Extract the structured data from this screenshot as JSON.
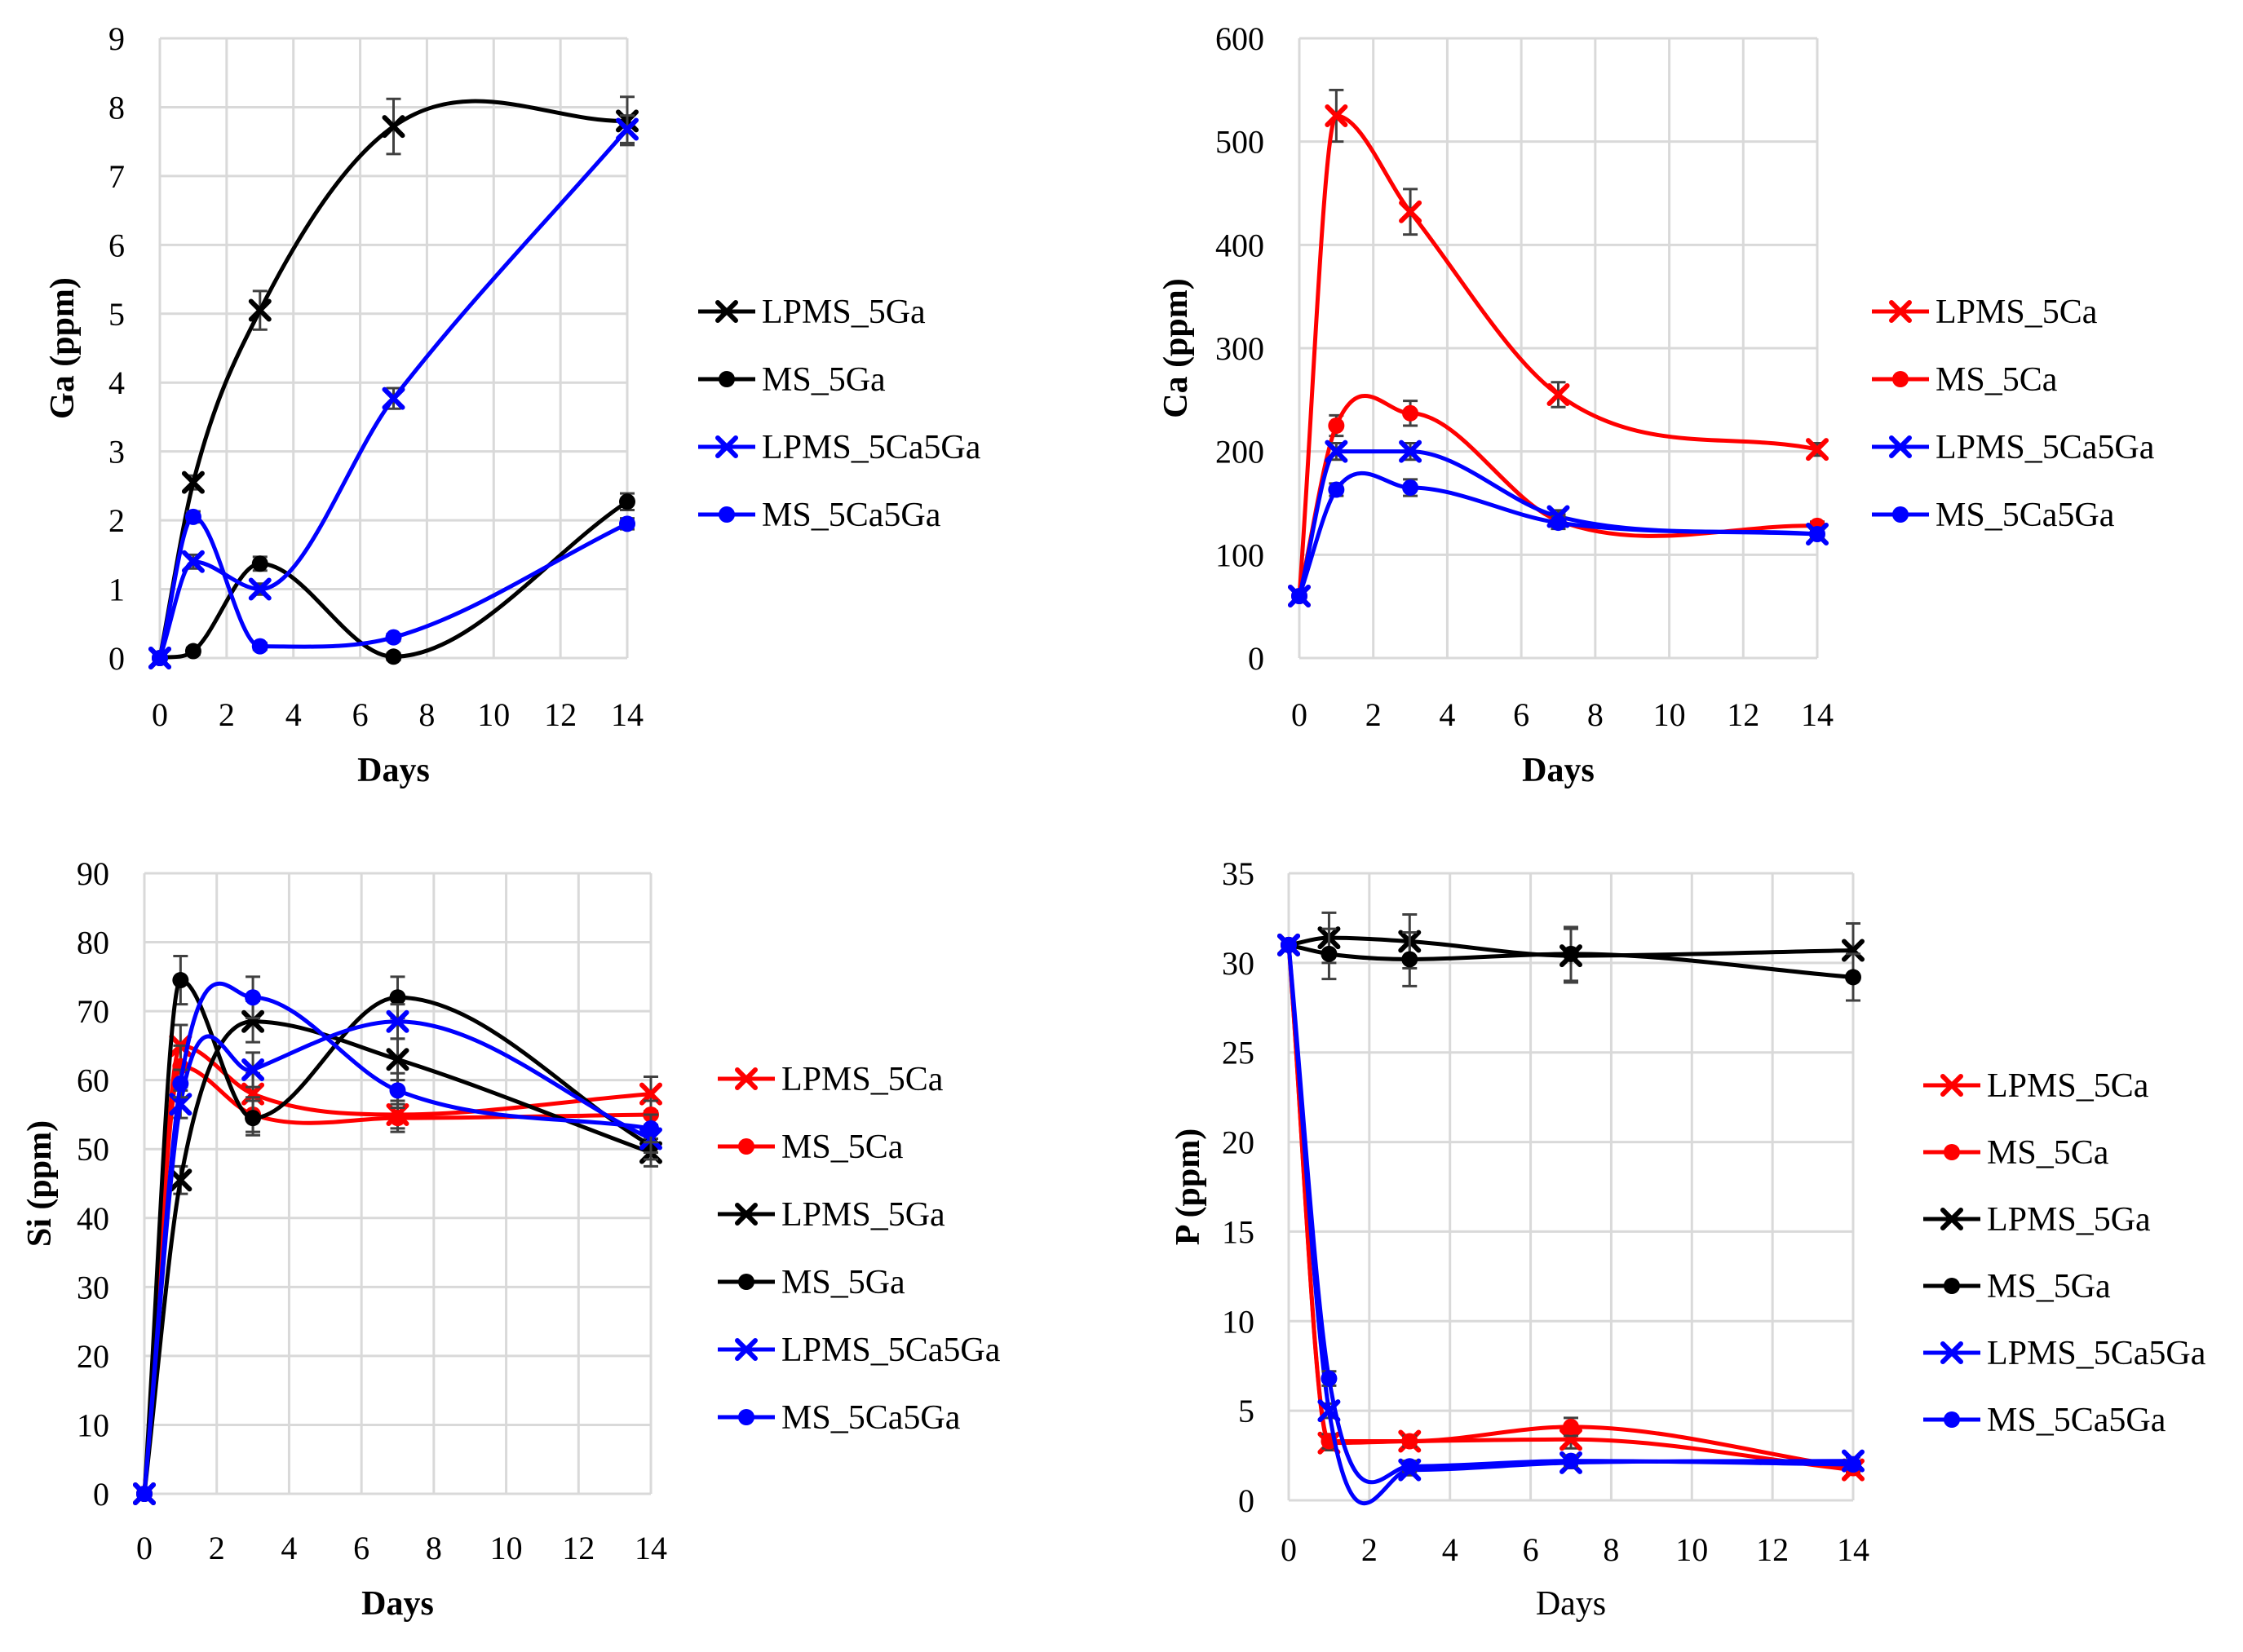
{
  "chart_data": [
    {
      "type": "line",
      "id": "ga",
      "xlabel": "Days",
      "ylabel": "Ga (ppm)",
      "xlim": [
        0,
        14
      ],
      "ylim": [
        0,
        9
      ],
      "xticks": [
        0,
        2,
        4,
        6,
        8,
        10,
        12,
        14
      ],
      "yticks": [
        0,
        1,
        2,
        3,
        4,
        5,
        6,
        7,
        8,
        9
      ],
      "xtick_labels": [
        "0",
        "2",
        "4",
        "6",
        "8",
        "10",
        "12",
        "14"
      ],
      "ytick_labels": [
        "0",
        "1",
        "2",
        "3",
        "4",
        "5",
        "6",
        "7",
        "8",
        "9"
      ],
      "x": [
        0,
        1,
        3,
        7,
        14
      ],
      "series": [
        {
          "name": "LPMS_5Ga",
          "marker": "x",
          "color": "#000000",
          "values": [
            0,
            2.55,
            5.05,
            7.72,
            7.8
          ],
          "errors": [
            0,
            0.1,
            0.28,
            0.4,
            0.35
          ]
        },
        {
          "name": "MS_5Ga",
          "marker": "o",
          "color": "#000000",
          "values": [
            0,
            0.1,
            1.37,
            0.02,
            2.27
          ],
          "errors": [
            0,
            0.05,
            0.1,
            0.05,
            0.12
          ]
        },
        {
          "name": "LPMS_5Ca5Ga",
          "marker": "x",
          "color": "#0000ff",
          "values": [
            0,
            1.4,
            1.0,
            3.77,
            7.68
          ],
          "errors": [
            0,
            0.1,
            0.08,
            0.15,
            0.2
          ]
        },
        {
          "name": "MS_5Ca5Ga",
          "marker": "o",
          "color": "#0000ff",
          "values": [
            0,
            2.05,
            0.17,
            0.3,
            1.95
          ],
          "errors": [
            0,
            0.08,
            0.05,
            0.05,
            0.08
          ]
        }
      ]
    },
    {
      "type": "line",
      "id": "ca",
      "xlabel": "Days",
      "ylabel": "Ca (ppm)",
      "xlim": [
        0,
        14
      ],
      "ylim": [
        0,
        600
      ],
      "xticks": [
        0,
        2,
        4,
        6,
        8,
        10,
        12,
        14
      ],
      "yticks": [
        0,
        100,
        200,
        300,
        400,
        500,
        600
      ],
      "xtick_labels": [
        "0",
        "2",
        "4",
        "6",
        "8",
        "10",
        "12",
        "14"
      ],
      "ytick_labels": [
        "0",
        "100",
        "200",
        "300",
        "400",
        "500",
        "600"
      ],
      "x": [
        0,
        1,
        3,
        7,
        14
      ],
      "series": [
        {
          "name": "LPMS_5Ca",
          "marker": "x",
          "color": "#ff0000",
          "values": [
            60,
            525,
            432,
            255,
            202
          ],
          "errors": [
            0,
            25,
            22,
            12,
            6
          ]
        },
        {
          "name": "MS_5Ca",
          "marker": "o",
          "color": "#ff0000",
          "values": [
            60,
            225,
            237,
            133,
            128
          ],
          "errors": [
            0,
            10,
            12,
            6,
            4
          ]
        },
        {
          "name": "LPMS_5Ca5Ga",
          "marker": "x",
          "color": "#0000ff",
          "values": [
            60,
            200,
            200,
            137,
            120
          ],
          "errors": [
            0,
            8,
            8,
            6,
            4
          ]
        },
        {
          "name": "MS_5Ca5Ga",
          "marker": "o",
          "color": "#0000ff",
          "values": [
            60,
            163,
            165,
            131,
            120
          ],
          "errors": [
            0,
            6,
            8,
            6,
            4
          ]
        }
      ]
    },
    {
      "type": "line",
      "id": "si",
      "xlabel": "Days",
      "ylabel": "Si (ppm)",
      "xlim": [
        0,
        14
      ],
      "ylim": [
        0,
        90
      ],
      "xticks": [
        0,
        2,
        4,
        6,
        8,
        10,
        12,
        14
      ],
      "yticks": [
        0,
        10,
        20,
        30,
        40,
        50,
        60,
        70,
        80,
        90
      ],
      "xtick_labels": [
        "0",
        "2",
        "4",
        "6",
        "8",
        "10",
        "12",
        "14"
      ],
      "ytick_labels": [
        "0",
        "10",
        "20",
        "30",
        "40",
        "50",
        "60",
        "70",
        "80",
        "90"
      ],
      "x": [
        0,
        1,
        3,
        7,
        14
      ],
      "series": [
        {
          "name": "LPMS_5Ca",
          "marker": "x",
          "color": "#ff0000",
          "values": [
            0,
            65,
            58,
            55,
            58
          ],
          "errors": [
            0,
            3,
            3,
            2,
            2.5
          ]
        },
        {
          "name": "MS_5Ca",
          "marker": "o",
          "color": "#ff0000",
          "values": [
            0,
            62,
            55,
            54.5,
            55
          ],
          "errors": [
            0,
            3,
            2.5,
            2,
            2
          ]
        },
        {
          "name": "LPMS_5Ga",
          "marker": "x",
          "color": "#000000",
          "values": [
            0,
            45.5,
            68.5,
            63,
            49.5
          ],
          "errors": [
            0,
            2,
            3,
            3,
            2
          ]
        },
        {
          "name": "MS_5Ga",
          "marker": "o",
          "color": "#000000",
          "values": [
            0,
            74.5,
            54.5,
            72,
            50.5
          ],
          "errors": [
            0,
            3.5,
            2.5,
            3,
            2
          ]
        },
        {
          "name": "LPMS_5Ca5Ga",
          "marker": "x",
          "color": "#0000ff",
          "values": [
            0,
            56.5,
            61.5,
            68.5,
            51.5
          ],
          "errors": [
            0,
            2,
            2.5,
            2.5,
            2
          ]
        },
        {
          "name": "MS_5Ca5Ga",
          "marker": "o",
          "color": "#0000ff",
          "values": [
            0,
            59.5,
            72,
            58.5,
            53
          ],
          "errors": [
            0,
            2,
            3,
            2.5,
            2
          ]
        }
      ]
    },
    {
      "type": "line",
      "id": "p",
      "xlabel": "Days",
      "ylabel": "P (ppm)",
      "xlim": [
        0,
        14
      ],
      "ylim": [
        0,
        35
      ],
      "xticks": [
        0,
        2,
        4,
        6,
        8,
        10,
        12,
        14
      ],
      "yticks": [
        0,
        5,
        10,
        15,
        20,
        25,
        30,
        35
      ],
      "xtick_labels": [
        "0",
        "2",
        "4",
        "6",
        "8",
        "10",
        "12",
        "14"
      ],
      "ytick_labels": [
        "0",
        "5",
        "10",
        "15",
        "20",
        "25",
        "30",
        "35"
      ],
      "x": [
        0,
        1,
        3,
        7,
        14
      ],
      "series": [
        {
          "name": "LPMS_5Ca",
          "marker": "x",
          "color": "#ff0000",
          "values": [
            31,
            3.2,
            3.3,
            3.4,
            1.7
          ],
          "errors": [
            0,
            0.4,
            0.3,
            0.5,
            0.2
          ]
        },
        {
          "name": "MS_5Ca",
          "marker": "o",
          "color": "#ff0000",
          "values": [
            31,
            3.3,
            3.3,
            4.1,
            1.8
          ],
          "errors": [
            0,
            0.4,
            0.3,
            0.5,
            0.2
          ]
        },
        {
          "name": "LPMS_5Ga",
          "marker": "x",
          "color": "#000000",
          "values": [
            31,
            31.4,
            31.2,
            30.4,
            30.7
          ],
          "errors": [
            0,
            1.4,
            1.5,
            1.5,
            1.5
          ]
        },
        {
          "name": "MS_5Ga",
          "marker": "o",
          "color": "#000000",
          "values": [
            31,
            30.5,
            30.2,
            30.5,
            29.2
          ],
          "errors": [
            0,
            1.4,
            1.5,
            1.5,
            1.3
          ]
        },
        {
          "name": "LPMS_5Ca5Ga",
          "marker": "x",
          "color": "#0000ff",
          "values": [
            31,
            5,
            1.7,
            2.1,
            2.2
          ],
          "errors": [
            0,
            0.4,
            0.3,
            0.3,
            0.2
          ]
        },
        {
          "name": "MS_5Ca5Ga",
          "marker": "o",
          "color": "#0000ff",
          "values": [
            31,
            6.8,
            1.9,
            2.2,
            2.0
          ],
          "errors": [
            0,
            0.4,
            0.3,
            0.3,
            0.2
          ]
        }
      ]
    }
  ]
}
